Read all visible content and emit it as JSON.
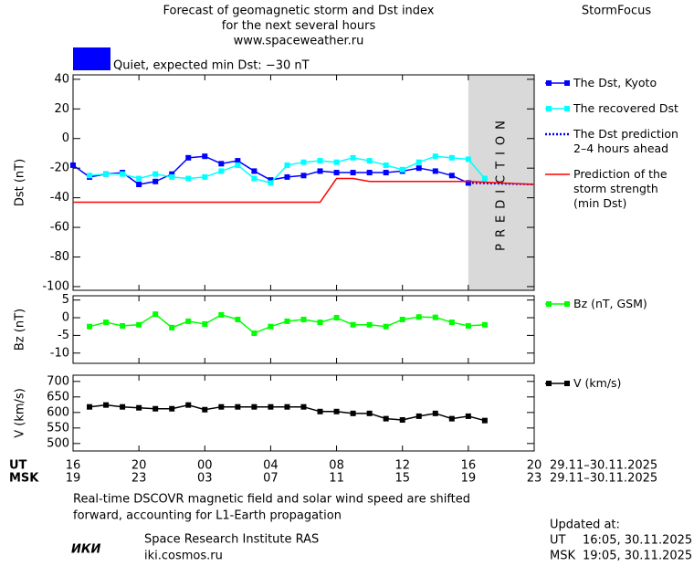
{
  "header": {
    "title_lines": [
      "Forecast of geomagnetic storm and Dst index",
      "for the next several hours",
      "www.spaceweather.ru"
    ],
    "brand": "StormFocus",
    "status": "Quiet, expected min Dst: −30 nT",
    "status_color": "#0000ff"
  },
  "chart_data": [
    {
      "type": "line",
      "ylabel": "Dst (nT)",
      "xlim": [
        0,
        28
      ],
      "xticks": [
        0,
        4,
        8,
        12,
        16,
        20,
        24,
        28
      ],
      "ylim": [
        -102.5,
        43
      ],
      "yticks": [
        -100,
        -80,
        -60,
        -40,
        -20,
        0,
        20,
        40
      ],
      "band": {
        "x": [
          24,
          28
        ],
        "label": "PREDICTION",
        "color": "#d9d9d9"
      },
      "series": [
        {
          "name": "The Dst, Kyoto",
          "color": "#0000ff",
          "marker": "square",
          "dash": false,
          "x": [
            0,
            1,
            2,
            3,
            4,
            5,
            6,
            7,
            8,
            9,
            10,
            11,
            12,
            13,
            14,
            15,
            16,
            17,
            18,
            19,
            20,
            21,
            22,
            23,
            24
          ],
          "values": [
            -18,
            -26,
            -24,
            -23,
            -31,
            -29,
            -24,
            -13,
            -12,
            -17,
            -15,
            -22,
            -28,
            -26,
            -25,
            -22,
            -23,
            -23,
            -23,
            -23,
            -22,
            -20,
            -22,
            -25,
            -30
          ]
        },
        {
          "name": "The recovered Dst",
          "color": "#00ffff",
          "marker": "square",
          "dash": false,
          "x": [
            1,
            2,
            3,
            4,
            5,
            6,
            7,
            8,
            9,
            10,
            11,
            12,
            13,
            14,
            15,
            16,
            17,
            18,
            19,
            20,
            21,
            22,
            23,
            24,
            25
          ],
          "values": [
            -25,
            -24,
            -24,
            -27,
            -24,
            -26,
            -27,
            -26,
            -22,
            -18,
            -27,
            -30,
            -18,
            -16,
            -15,
            -16,
            -13,
            -15,
            -18,
            -21,
            -16,
            -12,
            -13,
            -14,
            -27
          ]
        },
        {
          "name": "The Dst prediction\n2–4 hours ahead",
          "color": "#0000ff",
          "marker": "none",
          "dash": true,
          "x": [
            24,
            28
          ],
          "values": [
            -30,
            -31
          ]
        },
        {
          "name": "Prediction of the\nstorm strength\n(min Dst)",
          "color": "#ff0000",
          "marker": "none",
          "dash": false,
          "x": [
            0,
            15,
            16,
            17,
            18,
            24,
            28
          ],
          "values": [
            -43,
            -43,
            -27,
            -27,
            -29,
            -29,
            -31
          ]
        }
      ]
    },
    {
      "type": "line",
      "ylabel": "Bz (nT)",
      "xlim": [
        0,
        28
      ],
      "xticks": [
        0,
        4,
        8,
        12,
        16,
        20,
        24,
        28
      ],
      "ylim": [
        -12.9,
        6.2
      ],
      "yticks": [
        -10,
        -5,
        0,
        5
      ],
      "series": [
        {
          "name": "Bz (nT, GSM)",
          "color": "#00ff00",
          "marker": "square",
          "dash": false,
          "x": [
            1,
            2,
            3,
            4,
            5,
            6,
            7,
            8,
            9,
            10,
            11,
            12,
            13,
            14,
            15,
            16,
            17,
            18,
            19,
            20,
            21,
            22,
            23,
            24,
            25
          ],
          "values": [
            -2.5,
            -1.3,
            -2.3,
            -2,
            1,
            -2.8,
            -1,
            -1.8,
            0.8,
            -0.5,
            -4.4,
            -2.5,
            -1,
            -0.5,
            -1.3,
            0,
            -2,
            -2,
            -2.5,
            -0.5,
            0.2,
            0.1,
            -1.3,
            -2.3,
            -2
          ]
        }
      ]
    },
    {
      "type": "line",
      "ylabel": "V (km/s)",
      "xlim": [
        0,
        28
      ],
      "xticks": [
        0,
        4,
        8,
        12,
        16,
        20,
        24,
        28
      ],
      "ylim": [
        476,
        720
      ],
      "yticks": [
        500,
        550,
        600,
        650,
        700
      ],
      "series": [
        {
          "name": "V (km/s)",
          "color": "#000000",
          "marker": "square",
          "dash": false,
          "x": [
            1,
            2,
            3,
            4,
            5,
            6,
            7,
            8,
            9,
            10,
            11,
            12,
            13,
            14,
            15,
            16,
            17,
            18,
            19,
            20,
            21,
            22,
            23,
            24,
            25
          ],
          "values": [
            618,
            624,
            618,
            615,
            612,
            612,
            624,
            609,
            618,
            618,
            618,
            618,
            618,
            618,
            603,
            603,
            597,
            597,
            580,
            576,
            588,
            597,
            580,
            588,
            574
          ]
        }
      ]
    }
  ],
  "time_axis": {
    "rows": [
      {
        "label": "UT",
        "date": "29.11–30.11.2025",
        "ticks": [
          {
            "value": 0,
            "label": "16"
          },
          {
            "value": 4,
            "label": "20"
          },
          {
            "value": 8,
            "label": "00"
          },
          {
            "value": 12,
            "label": "04"
          },
          {
            "value": 16,
            "label": "08"
          },
          {
            "value": 20,
            "label": "12"
          },
          {
            "value": 24,
            "label": "16"
          },
          {
            "value": 28,
            "label": "20"
          }
        ]
      },
      {
        "label": "MSK",
        "date": "29.11–30.11.2025",
        "ticks": [
          {
            "value": 0,
            "label": "19"
          },
          {
            "value": 4,
            "label": "23"
          },
          {
            "value": 8,
            "label": "03"
          },
          {
            "value": 12,
            "label": "07"
          },
          {
            "value": 16,
            "label": "11"
          },
          {
            "value": 20,
            "label": "15"
          },
          {
            "value": 24,
            "label": "19"
          },
          {
            "value": 28,
            "label": "23"
          }
        ]
      }
    ]
  },
  "footer": {
    "note_lines": [
      "Real-time DSCOVR magnetic field and solar wind speed are shifted",
      "forward, accounting for L1-Earth propagation"
    ],
    "logo": "ИКИ",
    "institute": "Space Research Institute RAS",
    "site": "iki.cosmos.ru",
    "updated_title": "Updated at:",
    "updated": [
      {
        "label": "UT",
        "time": "16:05, 30.11.2025"
      },
      {
        "label": "MSK",
        "time": "19:05, 30.11.2025"
      }
    ]
  }
}
